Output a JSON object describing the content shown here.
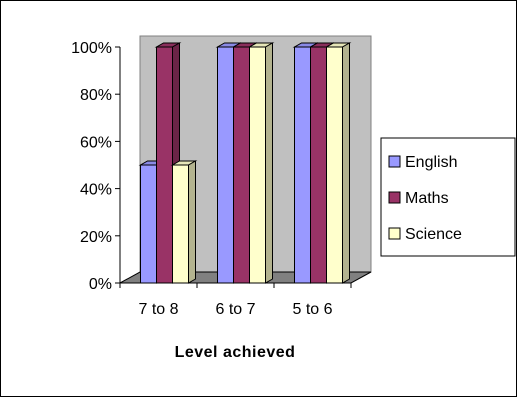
{
  "chart_data": {
    "type": "bar",
    "title": "",
    "xlabel": "Level achieved",
    "ylabel": "",
    "categories": [
      "7 to 8",
      "6 to 7",
      "5 to 6"
    ],
    "series": [
      {
        "name": "English",
        "values": [
          50,
          100,
          100
        ],
        "color": "#9999FF"
      },
      {
        "name": "Maths",
        "values": [
          100,
          100,
          100
        ],
        "color": "#993366"
      },
      {
        "name": "Science",
        "values": [
          50,
          100,
          100
        ],
        "color": "#FFFFCC"
      }
    ],
    "ylim": [
      0,
      100
    ],
    "yticks": [
      "0%",
      "20%",
      "40%",
      "60%",
      "80%",
      "100%"
    ],
    "grid": false,
    "legend": "right",
    "wall_color": "#C0C0C0",
    "floor_color": "#808080"
  }
}
